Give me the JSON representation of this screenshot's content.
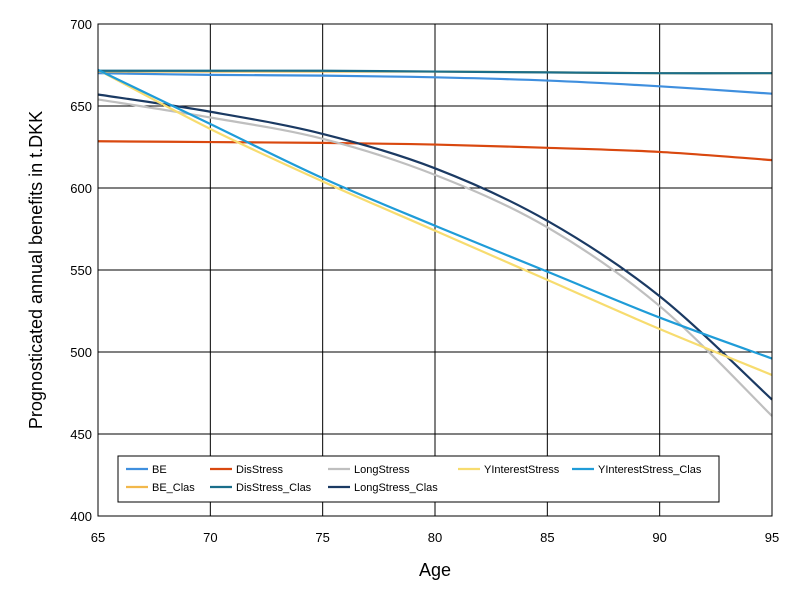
{
  "chart_data": {
    "type": "line",
    "title": "",
    "xlabel": "Age",
    "ylabel": "Prognosticated annual benefits in t.DKK",
    "xlim": [
      65,
      95
    ],
    "ylim": [
      400,
      700
    ],
    "xticks": [
      65,
      70,
      75,
      80,
      85,
      90,
      95
    ],
    "yticks": [
      400,
      450,
      500,
      550,
      600,
      650,
      700
    ],
    "grid": true,
    "legend_position": "bottom",
    "x": [
      65,
      70,
      75,
      80,
      85,
      90,
      95
    ],
    "series": [
      {
        "name": "BE",
        "color": "#3f8fde",
        "values": [
          670,
          669,
          668.5,
          667.5,
          665.5,
          662,
          657.5
        ]
      },
      {
        "name": "BE_Clas",
        "color": "#f2b84b",
        "values": [
          671,
          671,
          671,
          671,
          670.5,
          670,
          670
        ]
      },
      {
        "name": "DisStress",
        "color": "#d9480f",
        "values": [
          628.5,
          628,
          627.5,
          626.5,
          624.5,
          622,
          617
        ]
      },
      {
        "name": "DisStress_Clas",
        "color": "#1a6e8a",
        "values": [
          671.5,
          671.5,
          671.5,
          671,
          670.5,
          670,
          670
        ]
      },
      {
        "name": "LongStress",
        "color": "#bfbfbf",
        "values": [
          654,
          643,
          630,
          608,
          576,
          528,
          461
        ]
      },
      {
        "name": "LongStress_Clas",
        "color": "#1b3a63",
        "values": [
          657,
          646.5,
          633,
          612,
          580,
          534,
          471
        ]
      },
      {
        "name": "YInterestStress",
        "color": "#f7dc6f",
        "values": [
          672,
          636,
          604,
          574,
          544,
          514,
          486
        ]
      },
      {
        "name": "YInterestStress_Clas",
        "color": "#1f9cd8",
        "values": [
          672,
          639,
          606,
          577,
          549,
          521,
          496
        ]
      }
    ]
  }
}
